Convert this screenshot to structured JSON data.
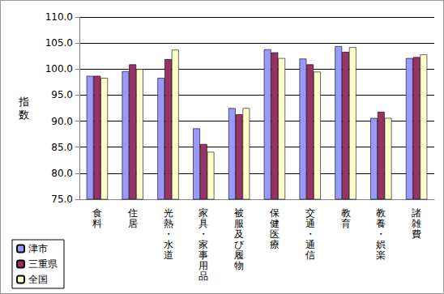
{
  "chart_data": {
    "type": "bar",
    "y_label": "指数",
    "categories": [
      "食料",
      "住居",
      "光熱・水道",
      "家具・家事用品",
      "被服及び履物",
      "保健医療",
      "交通・通信",
      "教育",
      "教養・娯楽",
      "諸雑費"
    ],
    "series": [
      {
        "name": "津市",
        "color": "#9999ff",
        "values": [
          98.7,
          99.6,
          98.3,
          88.6,
          92.5,
          103.8,
          102.0,
          104.4,
          90.6,
          102.1
        ]
      },
      {
        "name": "三重県",
        "color": "#993366",
        "values": [
          98.7,
          100.9,
          101.9,
          85.6,
          91.3,
          103.2,
          100.9,
          103.3,
          91.8,
          102.3
        ]
      },
      {
        "name": "全国",
        "color": "#ffffcc",
        "values": [
          98.3,
          100.0,
          103.7,
          84.1,
          92.5,
          102.1,
          99.5,
          104.2,
          90.6,
          102.8
        ]
      }
    ],
    "ylim": [
      75,
      110
    ],
    "yticks": [
      {
        "value": 75,
        "label": "75.0"
      },
      {
        "value": 80,
        "label": "80.0"
      },
      {
        "value": 85,
        "label": "85.0"
      },
      {
        "value": 90,
        "label": "90.0"
      },
      {
        "value": 95,
        "label": "95.0"
      },
      {
        "value": 100,
        "label": "100.0"
      },
      {
        "value": 105,
        "label": "105.0"
      },
      {
        "value": 110,
        "label": "110.0"
      }
    ],
    "grid": true,
    "legend": "bottom-left"
  }
}
